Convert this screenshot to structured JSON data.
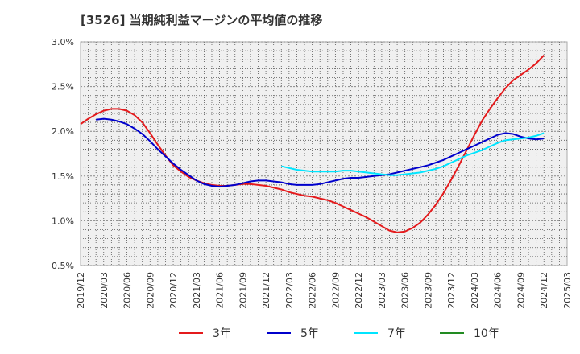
{
  "chart_data": {
    "type": "line",
    "title": "[3526]  当期純利益マージンの平均値の推移",
    "xlabel": "",
    "ylabel": "",
    "x_ticks": [
      "2019/12",
      "2020/03",
      "2020/06",
      "2020/09",
      "2020/12",
      "2021/03",
      "2021/06",
      "2021/09",
      "2021/12",
      "2022/03",
      "2022/06",
      "2022/09",
      "2022/12",
      "2023/03",
      "2023/06",
      "2023/09",
      "2023/12",
      "2024/03",
      "2024/06",
      "2024/09",
      "2024/12",
      "2025/03"
    ],
    "y_ticks": [
      "0.5%",
      "1.0%",
      "1.5%",
      "2.0%",
      "2.5%",
      "3.0%"
    ],
    "ylim": [
      0.5,
      3.0
    ],
    "grid": true,
    "legend_position": "bottom",
    "series": [
      {
        "name": "3年",
        "color": "#e41a1c",
        "points": [
          [
            "2019/12",
            2.08
          ],
          [
            "2020/01",
            2.14
          ],
          [
            "2020/02",
            2.19
          ],
          [
            "2020/03",
            2.23
          ],
          [
            "2020/04",
            2.25
          ],
          [
            "2020/05",
            2.25
          ],
          [
            "2020/06",
            2.23
          ],
          [
            "2020/07",
            2.18
          ],
          [
            "2020/08",
            2.1
          ],
          [
            "2020/09",
            1.98
          ],
          [
            "2020/10",
            1.85
          ],
          [
            "2020/11",
            1.73
          ],
          [
            "2020/12",
            1.62
          ],
          [
            "2021/01",
            1.55
          ],
          [
            "2021/02",
            1.49
          ],
          [
            "2021/03",
            1.45
          ],
          [
            "2021/04",
            1.42
          ],
          [
            "2021/05",
            1.4
          ],
          [
            "2021/06",
            1.39
          ],
          [
            "2021/07",
            1.39
          ],
          [
            "2021/08",
            1.4
          ],
          [
            "2021/09",
            1.41
          ],
          [
            "2021/10",
            1.41
          ],
          [
            "2021/11",
            1.4
          ],
          [
            "2021/12",
            1.39
          ],
          [
            "2022/01",
            1.37
          ],
          [
            "2022/02",
            1.35
          ],
          [
            "2022/03",
            1.32
          ],
          [
            "2022/04",
            1.3
          ],
          [
            "2022/05",
            1.28
          ],
          [
            "2022/06",
            1.27
          ],
          [
            "2022/07",
            1.25
          ],
          [
            "2022/08",
            1.23
          ],
          [
            "2022/09",
            1.2
          ],
          [
            "2022/10",
            1.16
          ],
          [
            "2022/11",
            1.12
          ],
          [
            "2022/12",
            1.08
          ],
          [
            "2023/01",
            1.04
          ],
          [
            "2023/02",
            0.99
          ],
          [
            "2023/03",
            0.94
          ],
          [
            "2023/04",
            0.89
          ],
          [
            "2023/05",
            0.87
          ],
          [
            "2023/06",
            0.88
          ],
          [
            "2023/07",
            0.92
          ],
          [
            "2023/08",
            0.98
          ],
          [
            "2023/09",
            1.07
          ],
          [
            "2023/10",
            1.18
          ],
          [
            "2023/11",
            1.31
          ],
          [
            "2023/12",
            1.46
          ],
          [
            "2024/01",
            1.62
          ],
          [
            "2024/02",
            1.79
          ],
          [
            "2024/03",
            1.96
          ],
          [
            "2024/04",
            2.12
          ],
          [
            "2024/05",
            2.25
          ],
          [
            "2024/06",
            2.37
          ],
          [
            "2024/07",
            2.48
          ],
          [
            "2024/08",
            2.57
          ],
          [
            "2024/09",
            2.63
          ],
          [
            "2024/10",
            2.69
          ],
          [
            "2024/11",
            2.76
          ],
          [
            "2024/12",
            2.85
          ]
        ]
      },
      {
        "name": "5年",
        "color": "#0000cc",
        "points": [
          [
            "2020/02",
            2.13
          ],
          [
            "2020/03",
            2.14
          ],
          [
            "2020/04",
            2.13
          ],
          [
            "2020/05",
            2.11
          ],
          [
            "2020/06",
            2.08
          ],
          [
            "2020/07",
            2.03
          ],
          [
            "2020/08",
            1.97
          ],
          [
            "2020/09",
            1.89
          ],
          [
            "2020/10",
            1.8
          ],
          [
            "2020/11",
            1.72
          ],
          [
            "2020/12",
            1.64
          ],
          [
            "2021/01",
            1.57
          ],
          [
            "2021/02",
            1.51
          ],
          [
            "2021/03",
            1.45
          ],
          [
            "2021/04",
            1.41
          ],
          [
            "2021/05",
            1.39
          ],
          [
            "2021/06",
            1.38
          ],
          [
            "2021/07",
            1.39
          ],
          [
            "2021/08",
            1.4
          ],
          [
            "2021/09",
            1.42
          ],
          [
            "2021/10",
            1.44
          ],
          [
            "2021/11",
            1.45
          ],
          [
            "2021/12",
            1.45
          ],
          [
            "2022/01",
            1.44
          ],
          [
            "2022/02",
            1.43
          ],
          [
            "2022/03",
            1.41
          ],
          [
            "2022/04",
            1.4
          ],
          [
            "2022/05",
            1.4
          ],
          [
            "2022/06",
            1.4
          ],
          [
            "2022/07",
            1.41
          ],
          [
            "2022/08",
            1.43
          ],
          [
            "2022/09",
            1.45
          ],
          [
            "2022/10",
            1.47
          ],
          [
            "2022/11",
            1.48
          ],
          [
            "2022/12",
            1.48
          ],
          [
            "2023/01",
            1.49
          ],
          [
            "2023/02",
            1.5
          ],
          [
            "2023/03",
            1.51
          ],
          [
            "2023/04",
            1.52
          ],
          [
            "2023/05",
            1.54
          ],
          [
            "2023/06",
            1.56
          ],
          [
            "2023/07",
            1.58
          ],
          [
            "2023/08",
            1.6
          ],
          [
            "2023/09",
            1.62
          ],
          [
            "2023/10",
            1.65
          ],
          [
            "2023/11",
            1.68
          ],
          [
            "2023/12",
            1.72
          ],
          [
            "2024/01",
            1.76
          ],
          [
            "2024/02",
            1.8
          ],
          [
            "2024/03",
            1.84
          ],
          [
            "2024/04",
            1.88
          ],
          [
            "2024/05",
            1.92
          ],
          [
            "2024/06",
            1.96
          ],
          [
            "2024/07",
            1.98
          ],
          [
            "2024/08",
            1.97
          ],
          [
            "2024/09",
            1.94
          ],
          [
            "2024/10",
            1.92
          ],
          [
            "2024/11",
            1.91
          ],
          [
            "2024/12",
            1.92
          ]
        ]
      },
      {
        "name": "7年",
        "color": "#00e5ff",
        "points": [
          [
            "2022/02",
            1.61
          ],
          [
            "2022/03",
            1.59
          ],
          [
            "2022/04",
            1.57
          ],
          [
            "2022/05",
            1.56
          ],
          [
            "2022/06",
            1.55
          ],
          [
            "2022/07",
            1.55
          ],
          [
            "2022/08",
            1.55
          ],
          [
            "2022/09",
            1.55
          ],
          [
            "2022/10",
            1.56
          ],
          [
            "2022/11",
            1.56
          ],
          [
            "2022/12",
            1.55
          ],
          [
            "2023/01",
            1.54
          ],
          [
            "2023/02",
            1.53
          ],
          [
            "2023/03",
            1.52
          ],
          [
            "2023/04",
            1.51
          ],
          [
            "2023/05",
            1.51
          ],
          [
            "2023/06",
            1.52
          ],
          [
            "2023/07",
            1.53
          ],
          [
            "2023/08",
            1.54
          ],
          [
            "2023/09",
            1.56
          ],
          [
            "2023/10",
            1.58
          ],
          [
            "2023/11",
            1.61
          ],
          [
            "2023/12",
            1.65
          ],
          [
            "2024/01",
            1.69
          ],
          [
            "2024/02",
            1.73
          ],
          [
            "2024/03",
            1.76
          ],
          [
            "2024/04",
            1.79
          ],
          [
            "2024/05",
            1.83
          ],
          [
            "2024/06",
            1.87
          ],
          [
            "2024/07",
            1.9
          ],
          [
            "2024/08",
            1.91
          ],
          [
            "2024/09",
            1.92
          ],
          [
            "2024/10",
            1.93
          ],
          [
            "2024/11",
            1.95
          ],
          [
            "2024/12",
            1.98
          ]
        ]
      },
      {
        "name": "10年",
        "color": "#228b22",
        "points": []
      }
    ]
  }
}
